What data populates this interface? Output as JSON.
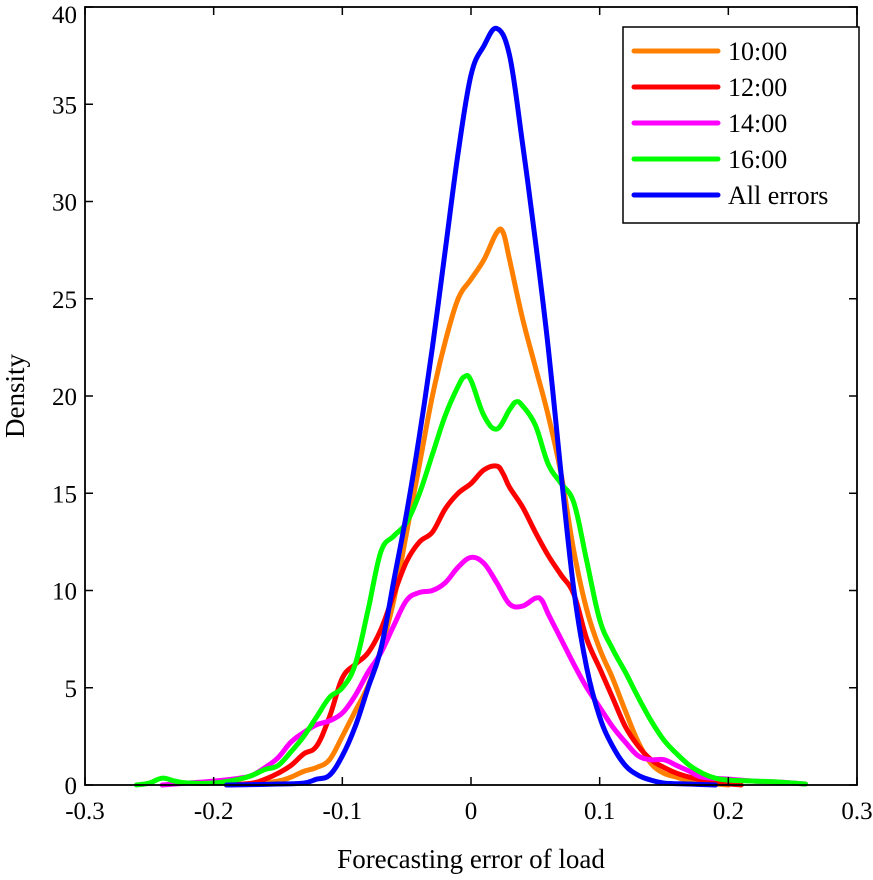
{
  "chart_data": {
    "type": "line",
    "xlabel": "Forecasting error of load",
    "ylabel": "Density",
    "xlim": [
      -0.3,
      0.3
    ],
    "ylim": [
      0,
      40
    ],
    "xticks": [
      -0.3,
      -0.2,
      -0.1,
      0,
      0.1,
      0.2,
      0.3
    ],
    "xtick_labels": [
      "-0.3",
      "-0.2",
      "-0.1",
      "0",
      "0.1",
      "0.2",
      "0.3"
    ],
    "yticks": [
      0,
      5,
      10,
      15,
      20,
      25,
      30,
      35,
      40
    ],
    "ytick_labels": [
      "0",
      "5",
      "10",
      "15",
      "20",
      "25",
      "30",
      "35",
      "40"
    ],
    "grid": false,
    "legend_position": "top-right",
    "series": [
      {
        "name": "10:00",
        "color": "#FF8000",
        "points": [
          [
            -0.19,
            0
          ],
          [
            -0.17,
            0.05
          ],
          [
            -0.15,
            0.2
          ],
          [
            -0.14,
            0.4
          ],
          [
            -0.13,
            0.7
          ],
          [
            -0.12,
            0.9
          ],
          [
            -0.11,
            1.3
          ],
          [
            -0.1,
            2.5
          ],
          [
            -0.09,
            3.8
          ],
          [
            -0.08,
            5.1
          ],
          [
            -0.07,
            7.0
          ],
          [
            -0.06,
            9.5
          ],
          [
            -0.05,
            13.0
          ],
          [
            -0.04,
            16.5
          ],
          [
            -0.03,
            20.0
          ],
          [
            -0.02,
            22.8
          ],
          [
            -0.01,
            25.0
          ],
          [
            0,
            26.0
          ],
          [
            0.01,
            27.0
          ],
          [
            0.02,
            28.4
          ],
          [
            0.025,
            28.4
          ],
          [
            0.03,
            27.0
          ],
          [
            0.04,
            24.0
          ],
          [
            0.05,
            21.5
          ],
          [
            0.06,
            19.0
          ],
          [
            0.07,
            16.0
          ],
          [
            0.08,
            12.0
          ],
          [
            0.09,
            9.0
          ],
          [
            0.1,
            7.0
          ],
          [
            0.11,
            5.5
          ],
          [
            0.12,
            3.8
          ],
          [
            0.13,
            2.2
          ],
          [
            0.14,
            1.1
          ],
          [
            0.15,
            0.6
          ],
          [
            0.16,
            0.4
          ],
          [
            0.17,
            0.2
          ],
          [
            0.18,
            0.1
          ],
          [
            0.19,
            0.05
          ],
          [
            0.2,
            0
          ]
        ]
      },
      {
        "name": "12:00",
        "color": "#FF0000",
        "points": [
          [
            -0.19,
            0
          ],
          [
            -0.17,
            0.1
          ],
          [
            -0.16,
            0.3
          ],
          [
            -0.15,
            0.6
          ],
          [
            -0.14,
            1.0
          ],
          [
            -0.13,
            1.6
          ],
          [
            -0.12,
            2.0
          ],
          [
            -0.11,
            3.5
          ],
          [
            -0.1,
            5.5
          ],
          [
            -0.09,
            6.2
          ],
          [
            -0.08,
            6.8
          ],
          [
            -0.07,
            8.0
          ],
          [
            -0.06,
            9.8
          ],
          [
            -0.05,
            11.5
          ],
          [
            -0.04,
            12.5
          ],
          [
            -0.03,
            13.0
          ],
          [
            -0.02,
            14.2
          ],
          [
            -0.01,
            15.0
          ],
          [
            0,
            15.5
          ],
          [
            0.01,
            16.2
          ],
          [
            0.02,
            16.4
          ],
          [
            0.025,
            16.0
          ],
          [
            0.03,
            15.3
          ],
          [
            0.04,
            14.3
          ],
          [
            0.05,
            13.0
          ],
          [
            0.06,
            11.8
          ],
          [
            0.07,
            10.8
          ],
          [
            0.08,
            9.8
          ],
          [
            0.09,
            7.5
          ],
          [
            0.1,
            6.0
          ],
          [
            0.11,
            4.5
          ],
          [
            0.12,
            3.0
          ],
          [
            0.13,
            2.0
          ],
          [
            0.14,
            1.3
          ],
          [
            0.15,
            0.9
          ],
          [
            0.16,
            0.6
          ],
          [
            0.17,
            0.4
          ],
          [
            0.18,
            0.25
          ],
          [
            0.19,
            0.12
          ],
          [
            0.21,
            0
          ]
        ]
      },
      {
        "name": "14:00",
        "color": "#FF00FF",
        "points": [
          [
            -0.24,
            0
          ],
          [
            -0.22,
            0.1
          ],
          [
            -0.2,
            0.2
          ],
          [
            -0.18,
            0.35
          ],
          [
            -0.17,
            0.5
          ],
          [
            -0.16,
            0.9
          ],
          [
            -0.15,
            1.4
          ],
          [
            -0.14,
            2.2
          ],
          [
            -0.13,
            2.7
          ],
          [
            -0.12,
            3.1
          ],
          [
            -0.11,
            3.3
          ],
          [
            -0.1,
            3.7
          ],
          [
            -0.09,
            4.6
          ],
          [
            -0.08,
            5.8
          ],
          [
            -0.07,
            6.8
          ],
          [
            -0.06,
            8.2
          ],
          [
            -0.05,
            9.5
          ],
          [
            -0.04,
            9.9
          ],
          [
            -0.03,
            10.0
          ],
          [
            -0.02,
            10.4
          ],
          [
            -0.01,
            11.2
          ],
          [
            0,
            11.7
          ],
          [
            0.01,
            11.4
          ],
          [
            0.02,
            10.4
          ],
          [
            0.03,
            9.3
          ],
          [
            0.04,
            9.2
          ],
          [
            0.05,
            9.6
          ],
          [
            0.055,
            9.5
          ],
          [
            0.06,
            8.8
          ],
          [
            0.07,
            7.5
          ],
          [
            0.08,
            6.2
          ],
          [
            0.09,
            5.0
          ],
          [
            0.1,
            4.0
          ],
          [
            0.11,
            3.0
          ],
          [
            0.12,
            2.2
          ],
          [
            0.13,
            1.5
          ],
          [
            0.14,
            1.3
          ],
          [
            0.15,
            1.3
          ],
          [
            0.16,
            1.0
          ],
          [
            0.17,
            0.7
          ],
          [
            0.18,
            0.4
          ],
          [
            0.2,
            0.3
          ],
          [
            0.22,
            0.2
          ],
          [
            0.24,
            0.15
          ],
          [
            0.26,
            0.05
          ]
        ]
      },
      {
        "name": "16:00",
        "color": "#00FF00",
        "points": [
          [
            -0.26,
            0
          ],
          [
            -0.25,
            0.1
          ],
          [
            -0.24,
            0.35
          ],
          [
            -0.23,
            0.2
          ],
          [
            -0.22,
            0.1
          ],
          [
            -0.2,
            0.1
          ],
          [
            -0.18,
            0.3
          ],
          [
            -0.17,
            0.5
          ],
          [
            -0.16,
            0.8
          ],
          [
            -0.15,
            1.0
          ],
          [
            -0.14,
            1.7
          ],
          [
            -0.13,
            2.5
          ],
          [
            -0.12,
            3.5
          ],
          [
            -0.11,
            4.5
          ],
          [
            -0.1,
            5.0
          ],
          [
            -0.09,
            6.2
          ],
          [
            -0.08,
            9.0
          ],
          [
            -0.07,
            12.0
          ],
          [
            -0.06,
            12.8
          ],
          [
            -0.05,
            13.5
          ],
          [
            -0.04,
            15.0
          ],
          [
            -0.03,
            17.0
          ],
          [
            -0.02,
            19.0
          ],
          [
            -0.01,
            20.5
          ],
          [
            -0.005,
            21.0
          ],
          [
            0,
            20.8
          ],
          [
            0.01,
            19.0
          ],
          [
            0.02,
            18.3
          ],
          [
            0.03,
            19.3
          ],
          [
            0.035,
            19.7
          ],
          [
            0.04,
            19.5
          ],
          [
            0.05,
            18.5
          ],
          [
            0.06,
            16.5
          ],
          [
            0.07,
            15.5
          ],
          [
            0.08,
            14.5
          ],
          [
            0.09,
            11.5
          ],
          [
            0.1,
            8.5
          ],
          [
            0.11,
            7.0
          ],
          [
            0.12,
            5.8
          ],
          [
            0.13,
            4.5
          ],
          [
            0.14,
            3.3
          ],
          [
            0.15,
            2.3
          ],
          [
            0.16,
            1.6
          ],
          [
            0.17,
            1.0
          ],
          [
            0.18,
            0.6
          ],
          [
            0.19,
            0.35
          ],
          [
            0.2,
            0.25
          ],
          [
            0.22,
            0.2
          ],
          [
            0.24,
            0.15
          ],
          [
            0.26,
            0.05
          ]
        ]
      },
      {
        "name": "All errors",
        "color": "#0000FF",
        "points": [
          [
            -0.19,
            0
          ],
          [
            -0.17,
            0.02
          ],
          [
            -0.15,
            0.05
          ],
          [
            -0.13,
            0.1
          ],
          [
            -0.12,
            0.3
          ],
          [
            -0.11,
            0.5
          ],
          [
            -0.1,
            1.5
          ],
          [
            -0.09,
            3.0
          ],
          [
            -0.08,
            5.0
          ],
          [
            -0.07,
            7.0
          ],
          [
            -0.06,
            10.5
          ],
          [
            -0.05,
            14.0
          ],
          [
            -0.04,
            18.0
          ],
          [
            -0.03,
            22.5
          ],
          [
            -0.02,
            27.5
          ],
          [
            -0.01,
            32.5
          ],
          [
            0,
            36.5
          ],
          [
            0.01,
            38.0
          ],
          [
            0.02,
            38.9
          ],
          [
            0.03,
            37.5
          ],
          [
            0.04,
            33.0
          ],
          [
            0.05,
            28.0
          ],
          [
            0.06,
            22.5
          ],
          [
            0.07,
            16.0
          ],
          [
            0.08,
            10.0
          ],
          [
            0.09,
            6.0
          ],
          [
            0.1,
            3.5
          ],
          [
            0.11,
            2.0
          ],
          [
            0.12,
            1.0
          ],
          [
            0.13,
            0.5
          ],
          [
            0.14,
            0.25
          ],
          [
            0.15,
            0.1
          ],
          [
            0.17,
            0.05
          ],
          [
            0.19,
            0
          ]
        ]
      }
    ]
  }
}
